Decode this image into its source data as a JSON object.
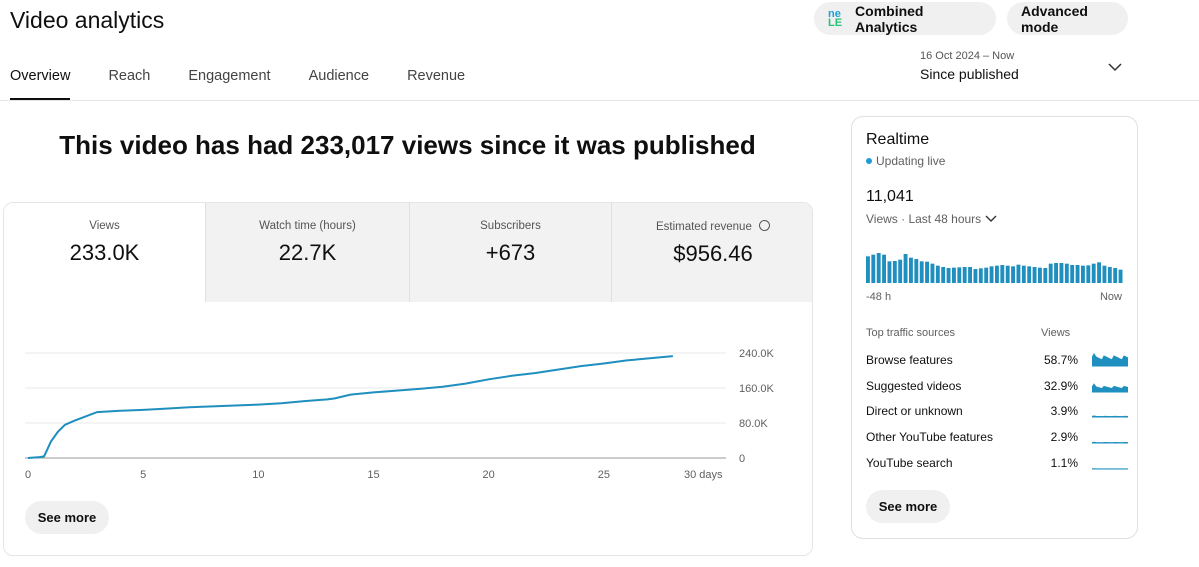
{
  "header": {
    "title": "Video analytics",
    "combined_label": "Combined Analytics",
    "advanced_label": "Advanced mode",
    "date_range": "16 Oct 2024 – Now",
    "period": "Since published"
  },
  "tabs": [
    {
      "label": "Overview",
      "active": true
    },
    {
      "label": "Reach"
    },
    {
      "label": "Engagement"
    },
    {
      "label": "Audience"
    },
    {
      "label": "Revenue"
    }
  ],
  "headline": "This video has had 233,017 views since it was published",
  "metrics": [
    {
      "label": "Views",
      "value": "233.0K"
    },
    {
      "label": "Watch time (hours)",
      "value": "22.7K"
    },
    {
      "label": "Subscribers",
      "value": "+673"
    },
    {
      "label": "Estimated revenue",
      "value": "$956.46"
    }
  ],
  "see_more": "See more",
  "chart_data": {
    "type": "line",
    "x_unit": "days",
    "x_ticks": [
      "0",
      "5",
      "10",
      "15",
      "20",
      "25",
      "30 days"
    ],
    "y_ticks": [
      "0",
      "80.0K",
      "160.0K",
      "240.0K"
    ],
    "xlim": [
      0,
      30
    ],
    "ylim": [
      0,
      240000
    ],
    "grid": true,
    "color": "#1e8fbf",
    "x": [
      0,
      0.5,
      0.7,
      1,
      1.3,
      1.6,
      2,
      2.5,
      3,
      4,
      5,
      6,
      7,
      8,
      9,
      10,
      11,
      12,
      13,
      13.3,
      14,
      15,
      16,
      17,
      18,
      19,
      20,
      21,
      22,
      23,
      24,
      25,
      26,
      27,
      28
    ],
    "y": [
      0,
      2000,
      4000,
      38000,
      60000,
      76000,
      85000,
      95000,
      105000,
      108000,
      110000,
      113000,
      116000,
      118000,
      120000,
      122000,
      125000,
      130000,
      134000,
      136000,
      145000,
      150000,
      154000,
      158000,
      163000,
      170000,
      180000,
      188000,
      194000,
      202000,
      210000,
      216000,
      223000,
      228000,
      233000
    ]
  },
  "realtime": {
    "title": "Realtime",
    "status": "Updating live",
    "count": "11,041",
    "caption": "Views · Last 48 hours",
    "start_label": "-48 h",
    "end_label": "Now",
    "live_color": "#1e9bd7",
    "bars": [
      80,
      85,
      90,
      85,
      65,
      66,
      70,
      87,
      76,
      72,
      65,
      64,
      58,
      52,
      48,
      45,
      46,
      47,
      48,
      48,
      42,
      44,
      46,
      50,
      52,
      54,
      52,
      50,
      55,
      52,
      50,
      48,
      46,
      45,
      58,
      60,
      60,
      58,
      54,
      54,
      52,
      53,
      58,
      62,
      52,
      48,
      45,
      40
    ]
  },
  "traffic": {
    "title": "Top traffic sources",
    "column": "Views",
    "rows": [
      {
        "source": "Browse features",
        "pct": "58.7%"
      },
      {
        "source": "Suggested videos",
        "pct": "32.9%"
      },
      {
        "source": "Direct or unknown",
        "pct": "3.9%"
      },
      {
        "source": "Other YouTube features",
        "pct": "2.9%"
      },
      {
        "source": "YouTube search",
        "pct": "1.1%"
      }
    ]
  },
  "rt_see_more": "See more"
}
